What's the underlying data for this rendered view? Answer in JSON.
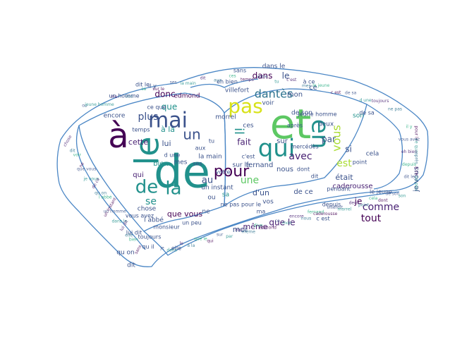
{
  "figure": {
    "palette": {
      "outline": "#4a86c5",
      "background": "#ffffff",
      "dark_purple": "#440154",
      "purple": "#482173",
      "indigo": "#3b528b",
      "blue": "#2c728e",
      "teal": "#21918c",
      "green": "#27ad81",
      "lightgreen": "#5dc863",
      "lime": "#aadc32",
      "yellow": "#d8e219"
    },
    "words": [
      "de",
      "et",
      "à",
      "le",
      "qui",
      "en",
      "mai",
      "pas",
      "la",
      "de",
      "pour",
      "vous",
      "un",
      "dantès",
      "il",
      "avec",
      "plus",
      "se",
      "que",
      "au",
      "une",
      "lui",
      "tout",
      "comme",
      "était",
      "est",
      "si",
      "fait",
      "donc",
      "cette",
      "je",
      "dans",
      "le",
      "à la",
      "que le",
      "qui",
      "sur",
      "par",
      "moi",
      "même",
      "d'un",
      "edmond",
      "ce",
      "mon",
      "encore",
      "nous",
      "fernand",
      "caderousse",
      "villefort",
      "morrel",
      "deux",
      "point",
      "cela",
      "dont",
      "de son",
      "son",
      "chose",
      "dit",
      "voir",
      "ne",
      "que vous",
      "je vous",
      "de ce",
      "qu on",
      "l abbé",
      "un instant",
      "un homme",
      "dans le",
      "lui dit",
      "elle",
      "bien",
      "sans",
      "ou",
      "jeune homme",
      "ma",
      "vos",
      "sa",
      "sur le",
      "ses",
      "la main",
      "dit",
      "aux",
      "ces",
      "temps",
      "votre",
      "tu",
      "c'est",
      "mes",
      "le jeune",
      "c est",
      "de sa",
      "d une",
      "toujours",
      "ne pas",
      "il y",
      "pour le",
      "vous avez",
      "ce que",
      "eh bien",
      "après",
      "depuis",
      "à ce",
      "dit le",
      "un peu",
      "qu il",
      "monsieur",
      "mercédès",
      "pendant",
      "jamais"
    ]
  }
}
